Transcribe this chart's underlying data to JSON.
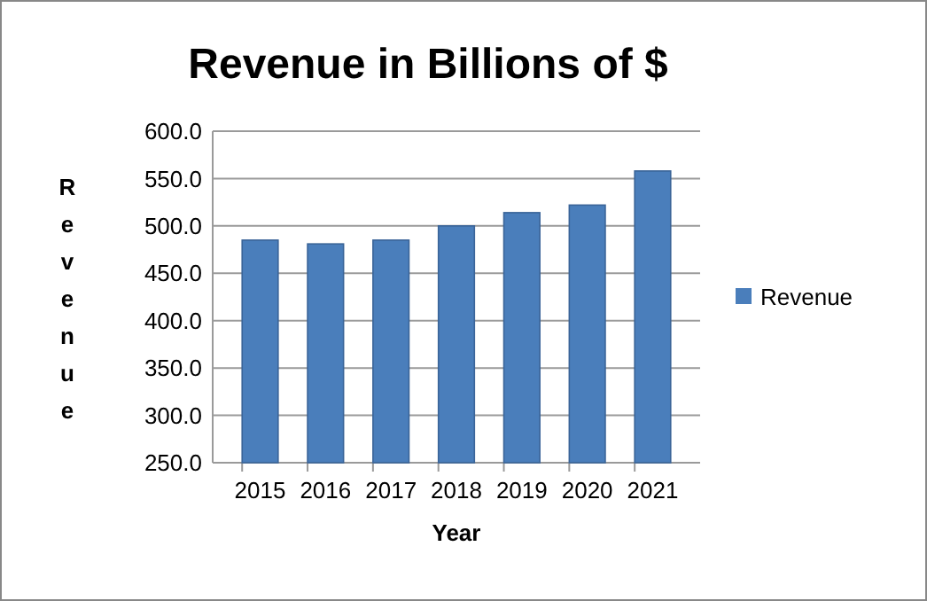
{
  "chart_data": {
    "type": "bar",
    "title": "Revenue in Billions of $",
    "xlabel": "Year",
    "ylabel": "Revenue",
    "categories": [
      "2015",
      "2016",
      "2017",
      "2018",
      "2019",
      "2020",
      "2021"
    ],
    "series": [
      {
        "name": "Revenue",
        "color": "#4a7ebb",
        "values": [
          485,
          481,
          485,
          500,
          514,
          522,
          558
        ]
      }
    ],
    "ylim": [
      250,
      600
    ],
    "yticks": [
      {
        "value": 250,
        "label": "250.0"
      },
      {
        "value": 300,
        "label": "300.0"
      },
      {
        "value": 350,
        "label": "350.0"
      },
      {
        "value": 400,
        "label": "400.0"
      },
      {
        "value": 450,
        "label": "450.0"
      },
      {
        "value": 500,
        "label": "500.0"
      },
      {
        "value": 550,
        "label": "550.0"
      },
      {
        "value": 600,
        "label": "600.0"
      }
    ],
    "grid": "y",
    "legend": "right"
  }
}
